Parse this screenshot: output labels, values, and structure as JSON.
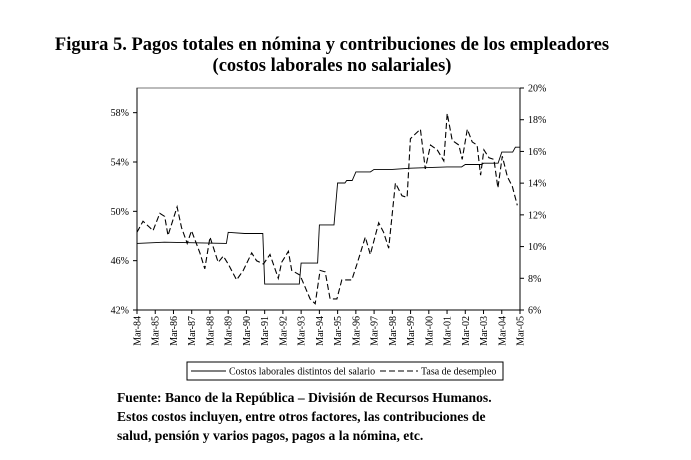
{
  "chart_data": {
    "type": "line",
    "title": "Figura 5. Pagos totales en nómina y contribuciones de los empleadores",
    "subtitle": "(costos laborales no salariales)",
    "x_tick_labels": [
      "Mar-84",
      "Mar-85",
      "Mar-86",
      "Mar-87",
      "Mar-88",
      "Mar-89",
      "Mar-90",
      "Mar-91",
      "Mar-92",
      "Mar-93",
      "Mar-94",
      "Mar-95",
      "Mar-96",
      "Mar-97",
      "Mar-98",
      "Mar-99",
      "Mar-00",
      "Mar-01",
      "Mar-02",
      "Mar-03",
      "Mar-04",
      "Mar-05"
    ],
    "xlim": [
      1984,
      2005
    ],
    "y_left": {
      "ylim": [
        42,
        60
      ],
      "ticks": [
        42,
        46,
        50,
        54,
        58
      ],
      "tick_labels": [
        "42%",
        "46%",
        "50%",
        "54%",
        "58%"
      ]
    },
    "y_right": {
      "ylim": [
        6,
        20
      ],
      "ticks": [
        6,
        8,
        10,
        12,
        14,
        16,
        18,
        20
      ],
      "tick_labels": [
        "6%",
        "8%",
        "10%",
        "12%",
        "14%",
        "16%",
        "18%",
        "20%"
      ]
    },
    "grid": false,
    "legend_position": "bottom",
    "series": [
      {
        "name": "Costos laborales distintos del salario",
        "axis": "left",
        "style": "solid",
        "points": [
          [
            1984,
            47.4
          ],
          [
            1985.5,
            47.5
          ],
          [
            1988.9,
            47.4
          ],
          [
            1989.0,
            48.3
          ],
          [
            1989.9,
            48.2
          ],
          [
            1990.9,
            48.2
          ],
          [
            1991.0,
            44.1
          ],
          [
            1992.9,
            44.1
          ],
          [
            1993.0,
            45.8
          ],
          [
            1993.9,
            45.8
          ],
          [
            1994.0,
            48.9
          ],
          [
            1994.8,
            48.9
          ],
          [
            1995.0,
            52.3
          ],
          [
            1995.4,
            52.3
          ],
          [
            1995.5,
            52.5
          ],
          [
            1995.8,
            52.5
          ],
          [
            1996.0,
            53.2
          ],
          [
            1996.8,
            53.2
          ],
          [
            1997.0,
            53.4
          ],
          [
            1998.0,
            53.4
          ],
          [
            1999.0,
            53.5
          ],
          [
            2001.0,
            53.6
          ],
          [
            2001.8,
            53.6
          ],
          [
            2002.0,
            53.8
          ],
          [
            2002.9,
            53.8
          ],
          [
            2003.0,
            53.9
          ],
          [
            2003.8,
            53.9
          ],
          [
            2004.0,
            54.8
          ],
          [
            2004.6,
            54.8
          ],
          [
            2004.75,
            55.2
          ],
          [
            2005.0,
            55.2
          ]
        ]
      },
      {
        "name": "Tasa de desempleo",
        "axis": "right",
        "style": "dashed",
        "points": [
          [
            1984.0,
            10.9
          ],
          [
            1984.33,
            11.6
          ],
          [
            1984.7,
            11.2
          ],
          [
            1984.88,
            11.0
          ],
          [
            1985.25,
            12.1
          ],
          [
            1985.52,
            11.9
          ],
          [
            1985.7,
            10.7
          ],
          [
            1986.2,
            12.5
          ],
          [
            1986.44,
            11.2
          ],
          [
            1986.75,
            10.2
          ],
          [
            1986.99,
            11.0
          ],
          [
            1987.45,
            9.6
          ],
          [
            1987.72,
            8.6
          ],
          [
            1988.0,
            10.6
          ],
          [
            1988.45,
            9.0
          ],
          [
            1988.73,
            9.4
          ],
          [
            1989.0,
            8.9
          ],
          [
            1989.46,
            7.9
          ],
          [
            1989.83,
            8.5
          ],
          [
            1990.29,
            9.6
          ],
          [
            1990.56,
            9.1
          ],
          [
            1990.93,
            8.9
          ],
          [
            1991.29,
            9.5
          ],
          [
            1991.75,
            8.0
          ],
          [
            1991.93,
            9.0
          ],
          [
            1992.3,
            9.7
          ],
          [
            1992.48,
            8.5
          ],
          [
            1992.94,
            8.2
          ],
          [
            1993.49,
            6.7
          ],
          [
            1993.77,
            6.4
          ],
          [
            1994.04,
            8.5
          ],
          [
            1994.32,
            8.4
          ],
          [
            1994.59,
            6.7
          ],
          [
            1994.96,
            6.7
          ],
          [
            1995.23,
            7.9
          ],
          [
            1995.78,
            7.9
          ],
          [
            1996.06,
            8.9
          ],
          [
            1996.52,
            10.6
          ],
          [
            1996.79,
            9.5
          ],
          [
            1997.25,
            11.5
          ],
          [
            1997.52,
            10.9
          ],
          [
            1997.8,
            9.9
          ],
          [
            1998.17,
            14.0
          ],
          [
            1998.53,
            13.2
          ],
          [
            1998.81,
            13.1
          ],
          [
            1998.99,
            16.8
          ],
          [
            1999.54,
            17.4
          ],
          [
            1999.81,
            14.9
          ],
          [
            2000.09,
            16.4
          ],
          [
            2000.46,
            16.1
          ],
          [
            2000.82,
            15.4
          ],
          [
            2001.01,
            18.4
          ],
          [
            2001.28,
            16.7
          ],
          [
            2001.65,
            16.4
          ],
          [
            2001.83,
            15.5
          ],
          [
            2002.11,
            17.4
          ],
          [
            2002.38,
            16.6
          ],
          [
            2002.65,
            16.4
          ],
          [
            2002.84,
            14.5
          ],
          [
            2003.02,
            16.1
          ],
          [
            2003.3,
            15.6
          ],
          [
            2003.57,
            15.5
          ],
          [
            2003.79,
            13.7
          ],
          [
            2004.03,
            15.7
          ],
          [
            2004.31,
            14.4
          ],
          [
            2004.58,
            13.8
          ],
          [
            2004.85,
            12.6
          ]
        ]
      }
    ]
  },
  "note": {
    "line1": "Fuente: Banco de la República – División de Recursos Humanos.",
    "line2": "Estos costos incluyen, entre otros factores, las contribuciones de",
    "line3": "salud, pensión y varios pagos, pagos a la nómina, etc."
  }
}
